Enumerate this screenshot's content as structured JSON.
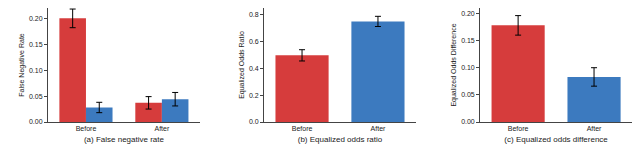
{
  "chart_data": [
    {
      "type": "bar",
      "xlabel": "(a) False negative rate",
      "ylabel": "False Negative Rate",
      "categories": [
        "Before",
        "After"
      ],
      "series": [
        {
          "color": "#d63c3c",
          "values": [
            0.2,
            0.037
          ],
          "errors": [
            0.018,
            0.012
          ]
        },
        {
          "color": "#3c7abf",
          "values": [
            0.028,
            0.044
          ],
          "errors": [
            0.01,
            0.013
          ]
        }
      ],
      "ylim": [
        0,
        0.22
      ],
      "yticks": [
        {
          "value": 0,
          "label": "0.00"
        },
        0.05,
        {
          "value": 0.1,
          "label": "0.10"
        },
        0.15,
        {
          "value": 0.2,
          "label": "0.20"
        }
      ],
      "grid": false
    },
    {
      "type": "bar",
      "xlabel": "(b) Equalized odds ratio",
      "ylabel": "Equalized Odds Ratio",
      "categories": [
        "Before",
        "After"
      ],
      "values": [
        0.497,
        0.75
      ],
      "errors": [
        0.042,
        0.038
      ],
      "colors": [
        "#d63c3c",
        "#3c7abf"
      ],
      "ylim": [
        0,
        0.85
      ],
      "yticks": [
        {
          "value": 0,
          "label": "0.0"
        },
        0.2,
        0.4,
        0.6,
        0.8
      ],
      "grid": false
    },
    {
      "type": "bar",
      "xlabel": "(c) Equalized odds difference",
      "ylabel": "Equalized Odds Difference",
      "categories": [
        "Before",
        "After"
      ],
      "values": [
        0.178,
        0.083
      ],
      "errors": [
        0.018,
        0.017
      ],
      "colors": [
        "#d63c3c",
        "#3c7abf"
      ],
      "ylim": [
        0,
        0.21
      ],
      "yticks": [
        {
          "value": 0,
          "label": "0.00"
        },
        0.05,
        {
          "value": 0.1,
          "label": "0.10"
        },
        0.15,
        {
          "value": 0.2,
          "label": "0.20"
        }
      ],
      "grid": false
    }
  ]
}
